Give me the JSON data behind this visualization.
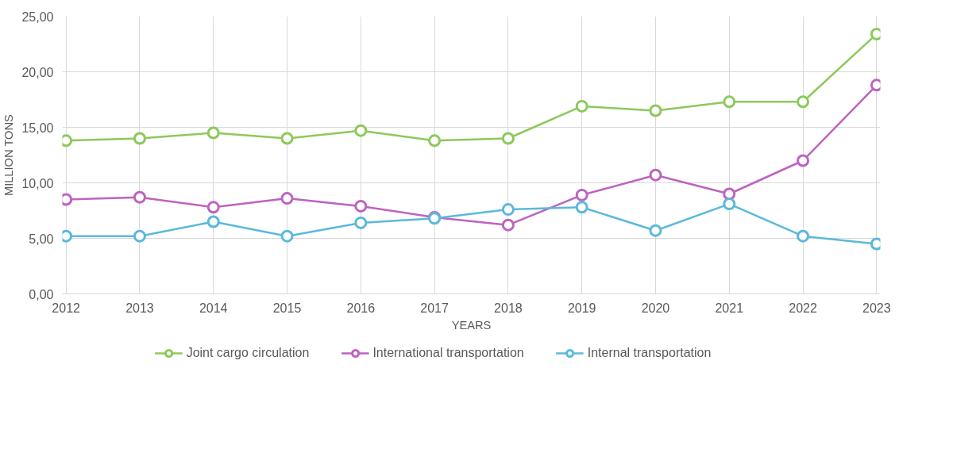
{
  "chart_data": {
    "type": "line",
    "xlabel": "YEARS",
    "ylabel": "MILLION TONS",
    "categories": [
      "2012",
      "2013",
      "2014",
      "2015",
      "2016",
      "2017",
      "2018",
      "2019",
      "2020",
      "2021",
      "2022",
      "2023"
    ],
    "series": [
      {
        "name": "Joint cargo circulation",
        "color": "#8cc95a",
        "values": [
          13.8,
          14.0,
          14.5,
          14.0,
          14.7,
          13.8,
          14.0,
          16.9,
          16.5,
          17.3,
          17.3,
          23.4
        ]
      },
      {
        "name": "International transportation",
        "color": "#bd63c0",
        "values": [
          8.5,
          8.7,
          7.8,
          8.6,
          7.9,
          6.9,
          6.2,
          8.9,
          10.7,
          9.0,
          12.0,
          18.8
        ]
      },
      {
        "name": "Internal transportation",
        "color": "#5ab9dc",
        "values": [
          5.2,
          5.2,
          6.5,
          5.2,
          6.4,
          6.8,
          7.6,
          7.8,
          5.7,
          8.1,
          5.2,
          4.5
        ]
      }
    ],
    "ylim": [
      0,
      25
    ],
    "yticks": [
      {
        "value": 0,
        "label": "0,00"
      },
      {
        "value": 5,
        "label": "5,00"
      },
      {
        "value": 10,
        "label": "10,00"
      },
      {
        "value": 15,
        "label": "15,00"
      },
      {
        "value": 20,
        "label": "20,00"
      },
      {
        "value": 25,
        "label": "25,00"
      }
    ],
    "grid": true,
    "legend": "bottom",
    "marker": "circle",
    "line_style": "solid"
  }
}
